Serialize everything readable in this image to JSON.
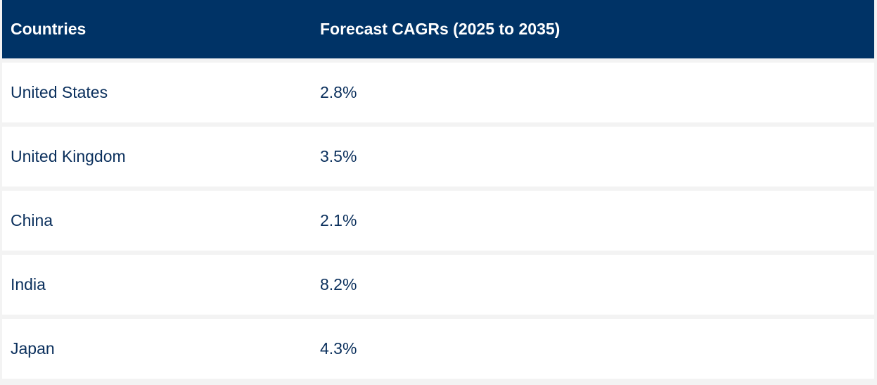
{
  "table": {
    "headers": [
      "Countries",
      "Forecast CAGRs (2025 to 2035)"
    ],
    "rows": [
      {
        "country": "United States",
        "cagr": "2.8%"
      },
      {
        "country": "United Kingdom",
        "cagr": "3.5%"
      },
      {
        "country": "China",
        "cagr": "2.1%"
      },
      {
        "country": "India",
        "cagr": "8.2%"
      },
      {
        "country": "Japan",
        "cagr": "4.3%"
      }
    ]
  },
  "colors": {
    "header_bg": "#003366",
    "header_text": "#ffffff",
    "row_bg": "#ffffff",
    "row_text": "#0a2f5c",
    "page_bg": "#f3f3f3"
  }
}
